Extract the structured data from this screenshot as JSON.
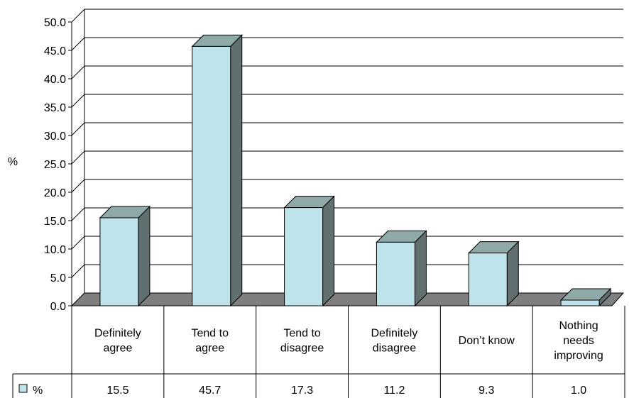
{
  "chart_data": {
    "type": "bar",
    "categories": [
      [
        "Definitely",
        "agree"
      ],
      [
        "Tend to",
        "agree"
      ],
      [
        "Tend to",
        "disagree"
      ],
      [
        "Definitely",
        "disagree"
      ],
      [
        "Don’t know"
      ],
      [
        "Nothing",
        "needs",
        "improving"
      ]
    ],
    "series": [
      {
        "name": "%",
        "values": [
          15.5,
          45.7,
          17.3,
          11.2,
          9.3,
          1.0
        ]
      }
    ],
    "value_labels": [
      "15.5",
      "45.7",
      "17.3",
      "11.2",
      "9.3",
      "1.0"
    ],
    "ylabel": "%",
    "ylim": [
      0,
      50
    ],
    "yticks": [
      "0.0",
      "5.0",
      "10.0",
      "15.0",
      "20.0",
      "25.0",
      "30.0",
      "35.0",
      "40.0",
      "45.0",
      "50.0"
    ],
    "grid": true,
    "legend": "data-table",
    "colors": {
      "bar_front": "#BFE3EA",
      "bar_side": "#607070",
      "bar_top": "#8FA8A8",
      "floor": "#7F7F7F"
    }
  }
}
